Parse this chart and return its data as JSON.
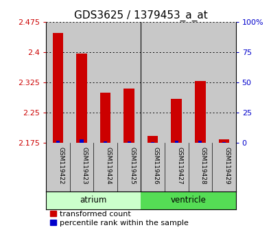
{
  "title": "GDS3625 / 1379453_a_at",
  "samples": [
    "GSM119422",
    "GSM119423",
    "GSM119424",
    "GSM119425",
    "GSM119426",
    "GSM119427",
    "GSM119428",
    "GSM119429"
  ],
  "transformed_counts": [
    2.447,
    2.396,
    2.3,
    2.31,
    2.192,
    2.285,
    2.328,
    2.185
  ],
  "percentile_ranks": [
    2.0,
    3.0,
    1.5,
    1.5,
    1.0,
    2.0,
    2.0,
    1.0
  ],
  "groups": [
    "atrium",
    "atrium",
    "atrium",
    "atrium",
    "ventricle",
    "ventricle",
    "ventricle",
    "ventricle"
  ],
  "y_min": 2.175,
  "y_max": 2.475,
  "y_ticks": [
    2.175,
    2.25,
    2.325,
    2.4,
    2.475
  ],
  "y_tick_labels": [
    "2.175",
    "2.25",
    "2.325",
    "2.4",
    "2.475"
  ],
  "y2_ticks": [
    0,
    25,
    50,
    75,
    100
  ],
  "y2_tick_labels": [
    "0",
    "25",
    "50",
    "75",
    "100%"
  ],
  "bar_color": "#cc0000",
  "blue_color": "#0000cc",
  "col_bg": "#c8c8c8",
  "atrium_color": "#ccffcc",
  "ventricle_color": "#55dd55",
  "legend_red": "transformed count",
  "legend_blue": "percentile rank within the sample",
  "title_fontsize": 11,
  "tick_fontsize": 8,
  "label_fontsize": 8.5
}
